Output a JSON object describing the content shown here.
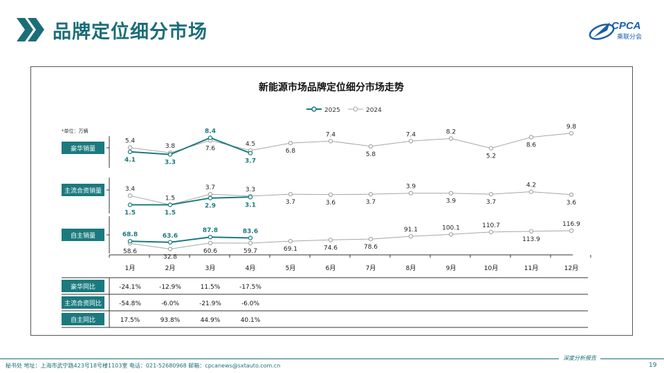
{
  "header": {
    "title": "品牌定位细分市场"
  },
  "logo": {
    "text": "CPCA",
    "sub": "乘联分会"
  },
  "footer": {
    "address": "秘书处  地址：上海市武宁路423号18号楼1103室  电话：021-52680968   邮箱：cpcanews@sxtauto.com.cn",
    "slogan": "深度分析报告",
    "page": "19"
  },
  "chart_data": {
    "type": "line",
    "title": "新能源市场品牌定位细分市场走势",
    "unit_note": "*单位：万辆",
    "legend": [
      "2025",
      "2024"
    ],
    "legend_position": "top-center",
    "colors": {
      "2025": "#1b7a7e",
      "2024": "#a6a6a6"
    },
    "categories": [
      "1月",
      "2月",
      "3月",
      "4月",
      "5月",
      "6月",
      "7月",
      "8月",
      "9月",
      "10月",
      "11月",
      "12月"
    ],
    "panels": [
      {
        "label": "豪华销量",
        "series": [
          {
            "name": "2025",
            "values": [
              4.1,
              3.3,
              8.4,
              3.7
            ]
          },
          {
            "name": "2024",
            "values": [
              5.4,
              3.8,
              7.6,
              4.5,
              6.8,
              7.4,
              5.8,
              7.4,
              8.2,
              5.2,
              8.6,
              9.8
            ]
          }
        ]
      },
      {
        "label": "主流合资销量",
        "series": [
          {
            "name": "2025",
            "values": [
              1.5,
              1.5,
              2.9,
              3.1
            ]
          },
          {
            "name": "2024",
            "values": [
              3.4,
              1.5,
              3.7,
              3.3,
              3.7,
              3.6,
              3.7,
              3.9,
              3.9,
              3.7,
              4.2,
              3.6
            ]
          }
        ]
      },
      {
        "label": "自主销量",
        "series": [
          {
            "name": "2025",
            "values": [
              68.8,
              63.6,
              87.8,
              83.6
            ]
          },
          {
            "name": "2024",
            "values": [
              58.6,
              32.8,
              60.6,
              59.7,
              69.1,
              74.6,
              78.6,
              91.1,
              100.1,
              110.7,
              113.9,
              116.9
            ]
          }
        ]
      }
    ],
    "yoy_table": [
      {
        "label": "豪华同比",
        "values": [
          "-24.1%",
          "-12.9%",
          "11.5%",
          "-17.5%"
        ]
      },
      {
        "label": "主流合资同比",
        "values": [
          "-54.8%",
          "-6.0%",
          "-21.9%",
          "-6.0%"
        ]
      },
      {
        "label": "自主同比",
        "values": [
          "17.5%",
          "93.8%",
          "44.9%",
          "40.1%"
        ]
      }
    ]
  }
}
